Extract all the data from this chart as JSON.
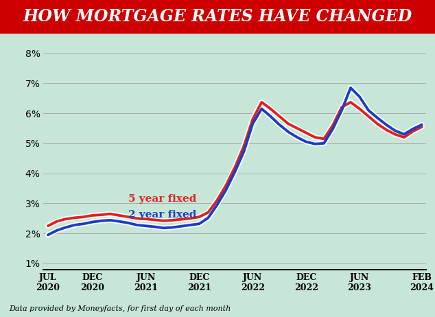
{
  "title": "HOW MORTGAGE RATES HAVE CHANGED",
  "subtitle": "Data provided by Moneyfacts, for first day of each month",
  "title_bg_color": "#cc0000",
  "title_text_color": "#ffffff",
  "bg_color": "#c8e6d8",
  "line_color_5yr": "#dd2222",
  "line_color_2yr": "#1a3fc4",
  "label_5yr": "5 year fixed",
  "label_2yr": "2 year fixed",
  "ylim": [
    0.8,
    8.4
  ],
  "yticks": [
    1,
    2,
    3,
    4,
    5,
    6,
    7,
    8
  ],
  "x_tick_labels": [
    "JUL\n2020",
    "DEC\n2020",
    "JUN\n2021",
    "DEC\n2021",
    "JUN\n2022",
    "DEC\n2022",
    "JUN\n2023",
    "FEB\n2024"
  ],
  "x_tick_positions": [
    0,
    5,
    11,
    17,
    23,
    29,
    35,
    42
  ],
  "months": [
    0,
    1,
    2,
    3,
    4,
    5,
    6,
    7,
    8,
    9,
    10,
    11,
    12,
    13,
    14,
    15,
    16,
    17,
    18,
    19,
    20,
    21,
    22,
    23,
    24,
    25,
    26,
    27,
    28,
    29,
    30,
    31,
    32,
    33,
    34,
    35,
    36,
    37,
    38,
    39,
    40,
    41,
    42
  ],
  "values_5yr": [
    2.25,
    2.4,
    2.48,
    2.52,
    2.55,
    2.6,
    2.62,
    2.65,
    2.6,
    2.55,
    2.5,
    2.48,
    2.45,
    2.42,
    2.44,
    2.47,
    2.5,
    2.55,
    2.7,
    3.1,
    3.6,
    4.2,
    4.9,
    5.8,
    6.37,
    6.15,
    5.9,
    5.65,
    5.5,
    5.35,
    5.2,
    5.15,
    5.6,
    6.2,
    6.37,
    6.15,
    5.9,
    5.65,
    5.45,
    5.3,
    5.2,
    5.4,
    5.55
  ],
  "values_2yr": [
    1.95,
    2.1,
    2.2,
    2.28,
    2.32,
    2.38,
    2.42,
    2.44,
    2.4,
    2.35,
    2.28,
    2.25,
    2.22,
    2.18,
    2.2,
    2.24,
    2.28,
    2.32,
    2.52,
    2.95,
    3.45,
    4.05,
    4.72,
    5.65,
    6.15,
    5.9,
    5.62,
    5.38,
    5.2,
    5.05,
    4.98,
    5.0,
    5.48,
    6.1,
    6.85,
    6.55,
    6.1,
    5.85,
    5.62,
    5.42,
    5.3,
    5.48,
    5.62
  ]
}
